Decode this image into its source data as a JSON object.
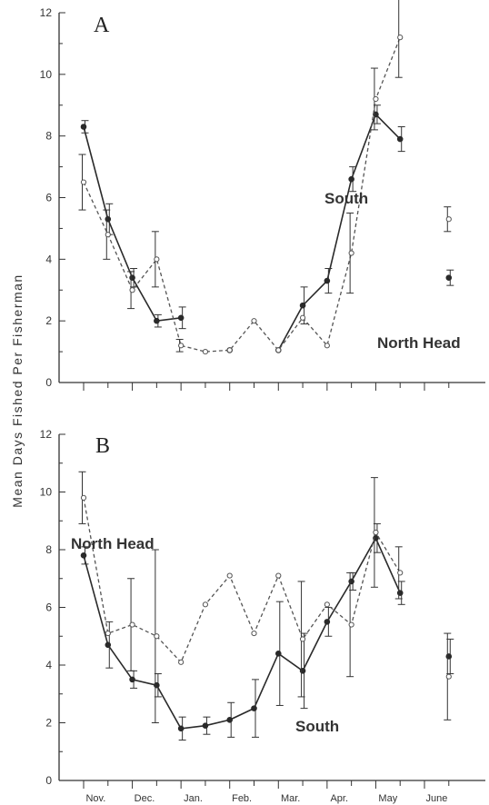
{
  "ylabel": "Mean  Days  Fished  Per  Fisherman",
  "x_categories": [
    "Nov.",
    "Dec.",
    "Jan.",
    "Feb.",
    "Mar.",
    "Apr.",
    "May",
    "June"
  ],
  "colors": {
    "south": "#2a2a2a",
    "north_head": "#555555",
    "axis": "#333333"
  },
  "chart_data": [
    {
      "type": "line",
      "panel": "A",
      "ylim": [
        0,
        12
      ],
      "yticks": [
        0,
        2,
        4,
        6,
        8,
        10,
        12
      ],
      "x": [
        0,
        0.5,
        1,
        1.5,
        2,
        2.5,
        3,
        3.5,
        4,
        4.5,
        5,
        5.5,
        6,
        6.5,
        7,
        7.5
      ],
      "series": [
        {
          "name": "South",
          "style": "solid",
          "x": [
            0,
            0.5,
            1,
            1.5,
            2,
            2.5,
            3,
            3.5,
            4,
            4.5,
            5,
            5.5,
            6,
            6.5,
            7,
            7.5
          ],
          "values": [
            8.3,
            5.3,
            3.4,
            2.0,
            2.1,
            null,
            1.05,
            null,
            1.05,
            2.5,
            3.3,
            6.6,
            8.7,
            7.9,
            null,
            3.4
          ],
          "err": [
            0.2,
            0.5,
            0.3,
            0.2,
            0.35,
            null,
            null,
            null,
            null,
            0.6,
            0.4,
            0.4,
            0.3,
            0.4,
            null,
            0.25
          ]
        },
        {
          "name": "North Head",
          "style": "dashed",
          "x": [
            0,
            0.5,
            1,
            1.5,
            2,
            2.5,
            3,
            3.5,
            4,
            4.5,
            5,
            5.5,
            6,
            6.5,
            7,
            7.5
          ],
          "values": [
            6.5,
            4.8,
            3.0,
            4.0,
            1.2,
            1.0,
            1.05,
            2.0,
            1.05,
            2.1,
            1.2,
            4.2,
            9.2,
            11.2,
            null,
            5.3
          ],
          "err": [
            0.9,
            0.8,
            0.6,
            0.9,
            0.2,
            null,
            null,
            null,
            null,
            null,
            null,
            1.3,
            1.0,
            1.3,
            null,
            0.4
          ]
        }
      ],
      "annotations": [
        {
          "text": "A",
          "role": "panel-letter"
        },
        {
          "text": "South",
          "role": "series-label"
        },
        {
          "text": "North Head",
          "role": "series-label"
        }
      ]
    },
    {
      "type": "line",
      "panel": "B",
      "ylim": [
        0,
        12
      ],
      "yticks": [
        0,
        2,
        4,
        6,
        8,
        10,
        12
      ],
      "x": [
        0,
        0.5,
        1,
        1.5,
        2,
        2.5,
        3,
        3.5,
        4,
        4.5,
        5,
        5.5,
        6,
        6.5,
        7,
        7.5
      ],
      "series": [
        {
          "name": "South",
          "style": "solid",
          "x": [
            0,
            0.5,
            1,
            1.5,
            2,
            2.5,
            3,
            3.5,
            4,
            4.5,
            5,
            5.5,
            6,
            6.5,
            7,
            7.5
          ],
          "values": [
            7.8,
            4.7,
            3.5,
            3.3,
            1.8,
            1.9,
            2.1,
            2.5,
            4.4,
            3.8,
            5.5,
            6.9,
            8.4,
            6.5,
            null,
            4.3
          ],
          "err": [
            0.3,
            0.8,
            0.3,
            0.4,
            0.4,
            0.3,
            0.6,
            1.0,
            1.8,
            1.3,
            0.5,
            0.3,
            0.5,
            0.4,
            null,
            0.6
          ]
        },
        {
          "name": "North Head",
          "style": "dashed",
          "x": [
            0,
            0.5,
            1,
            1.5,
            2,
            2.5,
            3,
            3.5,
            4,
            4.5,
            5,
            5.5,
            6,
            6.5,
            7,
            7.5
          ],
          "values": [
            9.8,
            5.1,
            5.4,
            5.0,
            4.1,
            6.1,
            7.1,
            5.1,
            7.1,
            4.9,
            6.1,
            5.4,
            8.6,
            7.2,
            null,
            3.6
          ],
          "err": [
            0.9,
            null,
            1.6,
            3.0,
            null,
            null,
            null,
            null,
            null,
            2.0,
            null,
            1.8,
            1.9,
            0.9,
            null,
            1.5
          ]
        }
      ],
      "annotations": [
        {
          "text": "B",
          "role": "panel-letter"
        },
        {
          "text": "North Head",
          "role": "series-label"
        },
        {
          "text": "South",
          "role": "series-label"
        }
      ]
    }
  ]
}
